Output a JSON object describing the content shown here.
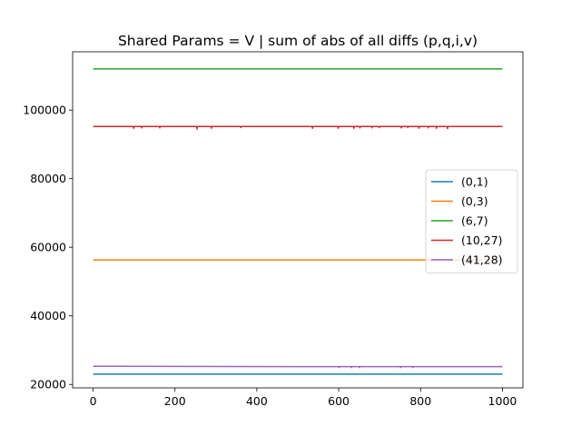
{
  "chart_data": {
    "type": "line",
    "title": "Shared Params =  V | sum of abs of all diffs (p,q,i,v)",
    "xlabel": "",
    "ylabel": "",
    "xlim": [
      -50,
      1050
    ],
    "ylim": [
      19000,
      117000
    ],
    "xticks": [
      0,
      200,
      400,
      600,
      800,
      1000
    ],
    "yticks": [
      20000,
      40000,
      60000,
      80000,
      100000
    ],
    "grid": false,
    "legend_position": "center-right",
    "series": [
      {
        "name": "(0,1)",
        "color": "#1f77b4",
        "x": [
          0,
          1000
        ],
        "y": [
          23000,
          23000
        ]
      },
      {
        "name": "(0,3)",
        "color": "#ff7f0e",
        "x": [
          0,
          1000
        ],
        "y": [
          56300,
          56300
        ]
      },
      {
        "name": "(6,7)",
        "color": "#2ca02c",
        "x": [
          0,
          1000
        ],
        "y": [
          112000,
          112000
        ]
      },
      {
        "name": "(10,27)",
        "color": "#d62728",
        "x": [
          0,
          98,
          99,
          100,
          118,
          119,
          120,
          162,
          163,
          164,
          253,
          254,
          255,
          288,
          289,
          290,
          360,
          361,
          362,
          535,
          536,
          537,
          598,
          599,
          600,
          636,
          637,
          638,
          651,
          652,
          653,
          680,
          681,
          682,
          698,
          699,
          700,
          752,
          753,
          754,
          768,
          769,
          770,
          795,
          796,
          797,
          818,
          819,
          820,
          838,
          839,
          840,
          865,
          866,
          867,
          1000
        ],
        "y": [
          95200,
          95200,
          94700,
          95200,
          95200,
          94800,
          95200,
          95200,
          94800,
          95200,
          95200,
          94500,
          95200,
          95200,
          94700,
          95200,
          95200,
          94900,
          95200,
          95200,
          94700,
          95200,
          95200,
          94700,
          95200,
          95200,
          94700,
          95200,
          95200,
          94800,
          95200,
          95200,
          94800,
          95200,
          95200,
          94900,
          95200,
          95200,
          94800,
          95200,
          95200,
          94900,
          95200,
          95200,
          94700,
          95200,
          95200,
          94800,
          95200,
          95200,
          94700,
          95200,
          95200,
          94600,
          95200,
          95200
        ]
      },
      {
        "name": "(41,28)",
        "color": "#9467bd",
        "x": [
          0,
          500,
          600,
          601,
          602,
          630,
          631,
          632,
          650,
          651,
          652,
          750,
          751,
          752,
          780,
          781,
          782,
          1000
        ],
        "y": [
          25300,
          25200,
          25200,
          24900,
          25200,
          25200,
          24900,
          25200,
          25200,
          24900,
          25200,
          25200,
          24900,
          25200,
          25200,
          24900,
          25200,
          25200
        ]
      }
    ]
  }
}
